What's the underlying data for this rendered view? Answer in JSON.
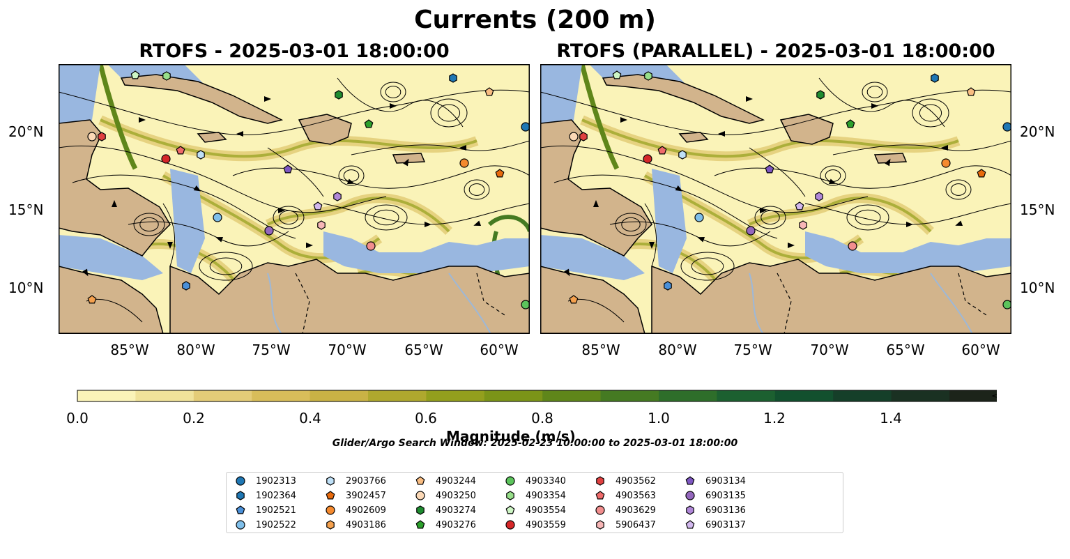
{
  "title": "Currents (200 m)",
  "panels": [
    {
      "title": "RTOFS - 2025-03-01 18:00:00"
    },
    {
      "title": "RTOFS (PARALLEL) - 2025-03-01 18:00:00"
    }
  ],
  "axes": {
    "x_ticks": [
      "85°W",
      "80°W",
      "75°W",
      "70°W",
      "65°W",
      "60°W"
    ],
    "y_ticks": [
      "20°N",
      "15°N",
      "10°N"
    ]
  },
  "colorbar": {
    "label": "Magnitude (m/s)",
    "ticks": [
      "0.0",
      "0.2",
      "0.4",
      "0.6",
      "0.8",
      "1.0",
      "1.2",
      "1.4"
    ],
    "colors": [
      "#faf3b8",
      "#f0e29a",
      "#e4cc78",
      "#d8bd5a",
      "#c9b245",
      "#afa82e",
      "#939f1d",
      "#7b9418",
      "#5f861a",
      "#457a22",
      "#2e6e2a",
      "#1c6030",
      "#12502e",
      "#153f29",
      "#1a3122",
      "#1c241a"
    ]
  },
  "search_window": "Glider/Argo Search Window: 2025-02-23 10:00:00 to 2025-03-01 18:00:00",
  "legend": [
    {
      "id": "1902313",
      "marker": "circle",
      "color": "#1f77b4"
    },
    {
      "id": "1902364",
      "marker": "hexagon",
      "color": "#1f77b4"
    },
    {
      "id": "1902521",
      "marker": "pentagon",
      "color": "#4a90d9"
    },
    {
      "id": "1902522",
      "marker": "circle",
      "color": "#7fbfea"
    },
    {
      "id": "2903766",
      "marker": "hexagon",
      "color": "#bfe0f7"
    },
    {
      "id": "3902457",
      "marker": "pentagon",
      "color": "#e86a0c"
    },
    {
      "id": "4902609",
      "marker": "circle",
      "color": "#f58a2e"
    },
    {
      "id": "4903186",
      "marker": "hexagon",
      "color": "#f5a14e"
    },
    {
      "id": "4903244",
      "marker": "pentagon",
      "color": "#f9bd82"
    },
    {
      "id": "4903250",
      "marker": "circle",
      "color": "#fbd8b6"
    },
    {
      "id": "4903274",
      "marker": "hexagon",
      "color": "#1e8c30"
    },
    {
      "id": "4903276",
      "marker": "pentagon",
      "color": "#2ca02c"
    },
    {
      "id": "4903340",
      "marker": "circle",
      "color": "#5cc45c"
    },
    {
      "id": "4903354",
      "marker": "hexagon",
      "color": "#98df8a"
    },
    {
      "id": "4903554",
      "marker": "pentagon",
      "color": "#cdf5c4"
    },
    {
      "id": "4903559",
      "marker": "circle",
      "color": "#d62728"
    },
    {
      "id": "4903562",
      "marker": "hexagon",
      "color": "#e04040"
    },
    {
      "id": "4903563",
      "marker": "pentagon",
      "color": "#ef6a6a"
    },
    {
      "id": "4903629",
      "marker": "circle",
      "color": "#f28e8e"
    },
    {
      "id": "5906437",
      "marker": "hexagon",
      "color": "#f7b6b6"
    },
    {
      "id": "6903134",
      "marker": "pentagon",
      "color": "#7e57c2"
    },
    {
      "id": "6903135",
      "marker": "circle",
      "color": "#9467bd"
    },
    {
      "id": "6903136",
      "marker": "hexagon",
      "color": "#b087d8"
    },
    {
      "id": "6903137",
      "marker": "pentagon",
      "color": "#d2b8ee"
    }
  ],
  "map_colors": {
    "land": "#d2b48c",
    "shallow_water": "#99b7e0",
    "border": "#000000",
    "river": "#9db8d8"
  }
}
